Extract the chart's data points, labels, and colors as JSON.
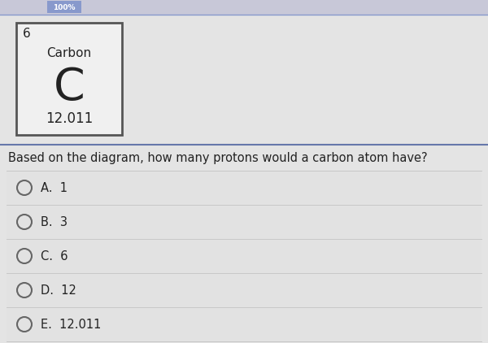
{
  "atomic_number": "6",
  "element_name": "Carbon",
  "element_symbol": "C",
  "atomic_mass": "12.011",
  "question": "Based on the diagram, how many protons would a carbon atom have?",
  "options": [
    {
      "label": "A.",
      "value": "1"
    },
    {
      "label": "B.",
      "value": "3"
    },
    {
      "label": "C.",
      "value": "6"
    },
    {
      "label": "D.",
      "value": "12"
    },
    {
      "label": "E.",
      "value": "12.011"
    }
  ],
  "page_bg": "#e8e8e8",
  "toolbar_bg": "#c8c8d8",
  "toolbar_btn_bg": "#8899cc",
  "content_bg": "#e4e4e4",
  "box_bg": "#f0f0f0",
  "box_border": "#555555",
  "question_section_bg": "#e8e8e8",
  "options_bg": "#e8e8e8",
  "option_divider": "#c8c8c8",
  "text_color": "#222222",
  "separator_color": "#8899bb",
  "circle_color": "#666666"
}
